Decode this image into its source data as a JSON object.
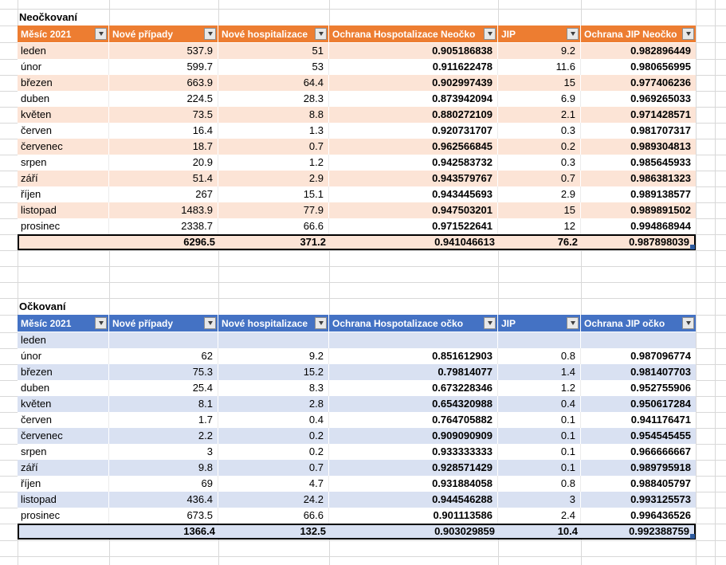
{
  "sheet": {
    "background": "#ffffff",
    "gridline_color": "#d8d8d8"
  },
  "tables": [
    {
      "title": "Neočkovaní",
      "header_color": "#ED7D31",
      "band_color": "#FCE4D6",
      "header_text_color": "#ffffff",
      "filter_icon": "chevron-down",
      "columns": [
        "Měsíc 2021",
        "Nové případy",
        "Nové hospitalizace",
        "Ochrana Hospotalizace Neočko",
        "JIP",
        "Ochrana JIP Neočko"
      ],
      "rows": [
        [
          "leden",
          "537.9",
          "51",
          "0.905186838",
          "9.2",
          "0.982896449"
        ],
        [
          "únor",
          "599.7",
          "53",
          "0.911622478",
          "11.6",
          "0.980656995"
        ],
        [
          "březen",
          "663.9",
          "64.4",
          "0.902997439",
          "15",
          "0.977406236"
        ],
        [
          "duben",
          "224.5",
          "28.3",
          "0.873942094",
          "6.9",
          "0.969265033"
        ],
        [
          "květen",
          "73.5",
          "8.8",
          "0.880272109",
          "2.1",
          "0.971428571"
        ],
        [
          "červen",
          "16.4",
          "1.3",
          "0.920731707",
          "0.3",
          "0.981707317"
        ],
        [
          "červenec",
          "18.7",
          "0.7",
          "0.962566845",
          "0.2",
          "0.989304813"
        ],
        [
          "srpen",
          "20.9",
          "1.2",
          "0.942583732",
          "0.3",
          "0.985645933"
        ],
        [
          "září",
          "51.4",
          "2.9",
          "0.943579767",
          "0.7",
          "0.986381323"
        ],
        [
          "říjen",
          "267",
          "15.1",
          "0.943445693",
          "2.9",
          "0.989138577"
        ],
        [
          "listopad",
          "1483.9",
          "77.9",
          "0.947503201",
          "15",
          "0.989891502"
        ],
        [
          "prosinec",
          "2338.7",
          "66.6",
          "0.971522641",
          "12",
          "0.994868944"
        ]
      ],
      "total": [
        "",
        "6296.5",
        "371.2",
        "0.941046613",
        "76.2",
        "0.987898039"
      ]
    },
    {
      "title": "Očkovaní",
      "header_color": "#4472C4",
      "band_color": "#D9E1F2",
      "header_text_color": "#ffffff",
      "filter_icon": "chevron-down",
      "columns": [
        "Měsíc 2021",
        "Nové případy",
        "Nové hospitalizace",
        "Ochrana Hospotalizace očko",
        "JIP",
        "Ochrana JIP očko"
      ],
      "rows": [
        [
          "leden",
          "",
          "",
          "",
          "",
          ""
        ],
        [
          "únor",
          "62",
          "9.2",
          "0.851612903",
          "0.8",
          "0.987096774"
        ],
        [
          "březen",
          "75.3",
          "15.2",
          "0.79814077",
          "1.4",
          "0.981407703"
        ],
        [
          "duben",
          "25.4",
          "8.3",
          "0.673228346",
          "1.2",
          "0.952755906"
        ],
        [
          "květen",
          "8.1",
          "2.8",
          "0.654320988",
          "0.4",
          "0.950617284"
        ],
        [
          "červen",
          "1.7",
          "0.4",
          "0.764705882",
          "0.1",
          "0.941176471"
        ],
        [
          "červenec",
          "2.2",
          "0.2",
          "0.909090909",
          "0.1",
          "0.954545455"
        ],
        [
          "srpen",
          "3",
          "0.2",
          "0.933333333",
          "0.1",
          "0.966666667"
        ],
        [
          "září",
          "9.8",
          "0.7",
          "0.928571429",
          "0.1",
          "0.989795918"
        ],
        [
          "říjen",
          "69",
          "4.7",
          "0.931884058",
          "0.8",
          "0.988405797"
        ],
        [
          "listopad",
          "436.4",
          "24.2",
          "0.944546288",
          "3",
          "0.993125573"
        ],
        [
          "prosinec",
          "673.5",
          "66.6",
          "0.901113586",
          "2.4",
          "0.996436526"
        ]
      ],
      "total": [
        "",
        "1366.4",
        "132.5",
        "0.903029859",
        "10.4",
        "0.992388759"
      ]
    }
  ]
}
